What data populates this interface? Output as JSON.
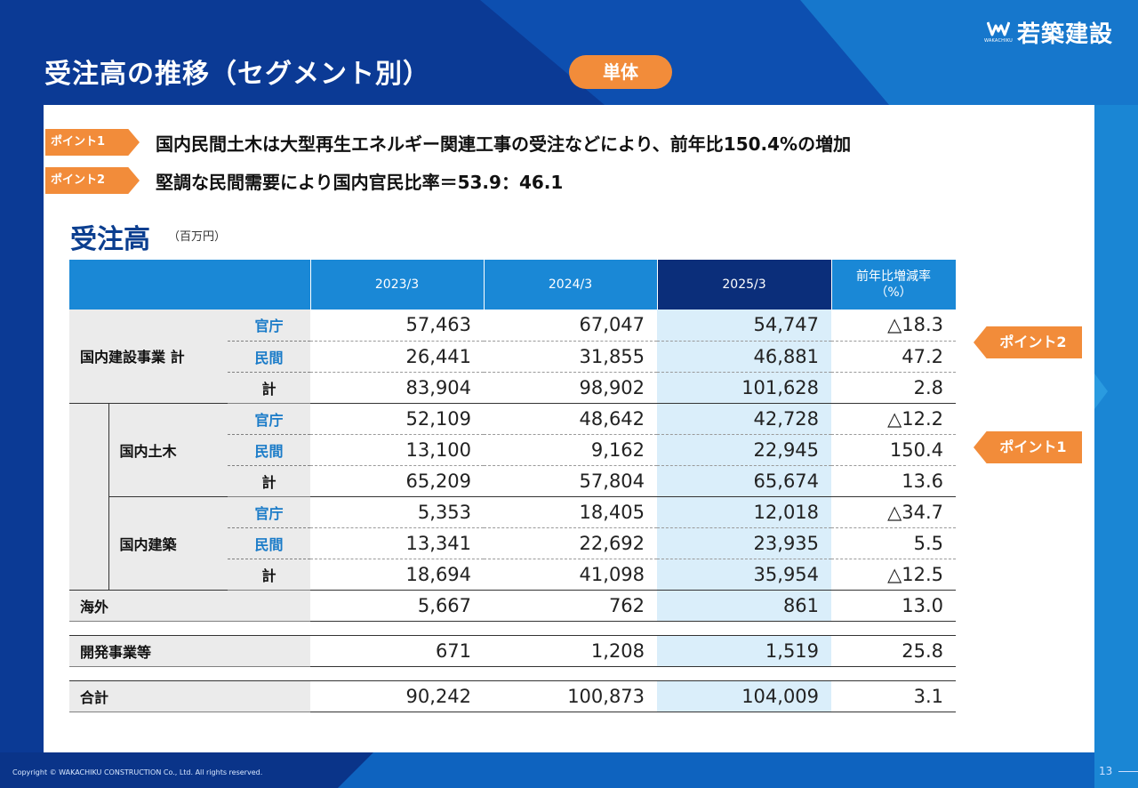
{
  "title": "受注高の推移（セグメント別）",
  "scope_badge": "単体",
  "logo": {
    "text": "若築建設",
    "sub": "WAKACHIKU"
  },
  "points": [
    {
      "tag": "ポイント1",
      "text": "国内民間土木は大型再生エネルギー関連工事の受注などにより、前年比150.4%の増加"
    },
    {
      "tag": "ポイント2",
      "text": "堅調な民間需要により国内官民比率＝53.9：46.1"
    }
  ],
  "section": {
    "title": "受注高",
    "unit": "（百万円）"
  },
  "table": {
    "headers": [
      "2023/3",
      "2024/3",
      "2025/3",
      "前年比増減率",
      "（%）"
    ],
    "groups": {
      "domestic": "国内建設事業 計",
      "civil": "国内土木",
      "building": "国内建築",
      "overseas": "海外",
      "development": "開発事業等",
      "grand_total": "合計"
    },
    "labels": {
      "gov": "官庁",
      "pri": "民間",
      "tot": "計"
    },
    "rows": {
      "domestic_gov": [
        "57,463",
        "67,047",
        "54,747",
        "△18.3"
      ],
      "domestic_pri": [
        "26,441",
        "31,855",
        "46,881",
        "47.2"
      ],
      "domestic_tot": [
        "83,904",
        "98,902",
        "101,628",
        "2.8"
      ],
      "civil_gov": [
        "52,109",
        "48,642",
        "42,728",
        "△12.2"
      ],
      "civil_pri": [
        "13,100",
        "9,162",
        "22,945",
        "150.4"
      ],
      "civil_tot": [
        "65,209",
        "57,804",
        "65,674",
        "13.6"
      ],
      "building_gov": [
        "5,353",
        "18,405",
        "12,018",
        "△34.7"
      ],
      "building_pri": [
        "13,341",
        "22,692",
        "23,935",
        "5.5"
      ],
      "building_tot": [
        "18,694",
        "41,098",
        "35,954",
        "△12.5"
      ],
      "overseas": [
        "5,667",
        "762",
        "861",
        "13.0"
      ],
      "development": [
        "671",
        "1,208",
        "1,519",
        "25.8"
      ],
      "grand_total": [
        "90,242",
        "100,873",
        "104,009",
        "3.1"
      ]
    }
  },
  "callouts": [
    "ポイント2",
    "ポイント1"
  ],
  "copyright": "Copyright © WAKACHIKU CONSTRUCTION Co., Ltd. All rights reserved.",
  "page_number": "13",
  "colors": {
    "accent_orange": "#f28c3a",
    "header_blue": "#1a88d6",
    "header_navy": "#0b2e7a",
    "title_navy": "#0b3e8f",
    "highlight": "#daeefa"
  }
}
